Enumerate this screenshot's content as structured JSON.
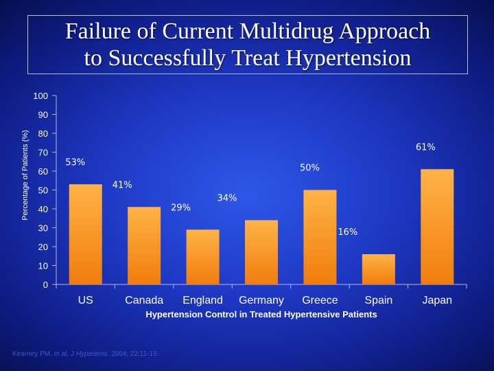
{
  "title_lines": [
    "Failure of Current Multidrug Approach",
    "to Successfully Treat Hypertension"
  ],
  "citation": {
    "authors": "Kearney PM, et al.",
    "journal": "J Hypertens",
    "details": ". 2004; 22:11-19."
  },
  "chart_data": {
    "type": "bar",
    "title": "Failure of Current Multidrug Approach to Successfully Treat Hypertension",
    "xlabel": "Hypertension Control in Treated Hypertensive Patients",
    "ylabel": "Percentage of Patients (%)",
    "categories": [
      "US",
      "Canada",
      "England",
      "Germany",
      "Greece",
      "Spain",
      "Japan"
    ],
    "values": [
      53,
      41,
      29,
      34,
      50,
      16,
      61
    ],
    "data_labels": [
      "53%",
      "41%",
      "29%",
      "34%",
      "50%",
      "16%",
      "61%"
    ],
    "ylim": [
      0,
      100
    ],
    "yticks": [
      "0",
      "10",
      "20",
      "30",
      "40",
      "50",
      "60",
      "70",
      "80",
      "90",
      "100"
    ],
    "grid": false,
    "legend": "none",
    "colors": {
      "bar_top": "#ffb347",
      "bar_bottom": "#f07d0c",
      "axis": "#b0b8e0",
      "tick_text": "#ffffff",
      "label_text": "#ffffff"
    }
  }
}
